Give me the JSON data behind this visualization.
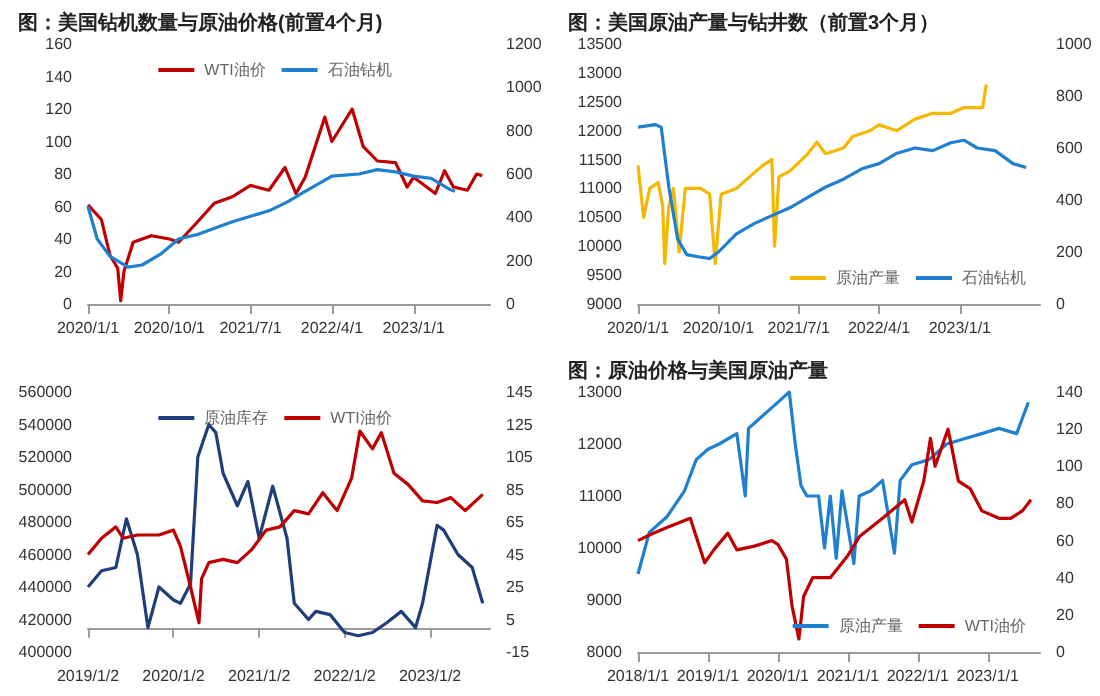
{
  "chart_data": [
    {
      "type": "line",
      "title": "图：美国钻机数量与原油价格(前置4个月)",
      "legend": "top",
      "marker": "none",
      "xlim": [
        "2020-01-01",
        "2023-09-15"
      ],
      "xticks": [
        {
          "value": "2020-01-01",
          "label": "2020/1/1"
        },
        {
          "value": "2020-10-01",
          "label": "2020/10/1"
        },
        {
          "value": "2021-07-01",
          "label": "2021/7/1"
        },
        {
          "value": "2022-04-01",
          "label": "2022/4/1"
        },
        {
          "value": "2023-01-01",
          "label": "2023/1/1"
        }
      ],
      "ylim": [
        0,
        160
      ],
      "yticks": [
        0,
        20,
        40,
        60,
        80,
        100,
        120,
        140,
        160
      ],
      "y2lim": [
        0,
        1200
      ],
      "y2ticks": [
        0,
        200,
        400,
        600,
        800,
        1000,
        1200
      ],
      "series": [
        {
          "name": "WTI油价",
          "color": "#c00000",
          "x": [
            "2020-01-01",
            "2020-02-15",
            "2020-03-15",
            "2020-04-10",
            "2020-04-20",
            "2020-05-01",
            "2020-06-01",
            "2020-08-01",
            "2020-10-01",
            "2020-11-01",
            "2021-01-01",
            "2021-03-01",
            "2021-05-01",
            "2021-07-01",
            "2021-09-01",
            "2021-10-25",
            "2021-12-01",
            "2022-01-01",
            "2022-03-08",
            "2022-04-01",
            "2022-06-08",
            "2022-07-15",
            "2022-09-01",
            "2022-11-01",
            "2022-12-10",
            "2023-01-01",
            "2023-03-15",
            "2023-04-15",
            "2023-05-15",
            "2023-07-01",
            "2023-08-01",
            "2023-08-20"
          ],
          "values": [
            61,
            52,
            30,
            22,
            2,
            20,
            38,
            42,
            40,
            38,
            50,
            62,
            66,
            73,
            70,
            84,
            68,
            78,
            115,
            100,
            120,
            97,
            88,
            87,
            72,
            78,
            68,
            82,
            72,
            70,
            80,
            79
          ]
        },
        {
          "name": "石油钻机",
          "color": "#1f7fd0",
          "axis": "y2",
          "x": [
            "2020-01-01",
            "2020-02-01",
            "2020-03-15",
            "2020-05-15",
            "2020-07-01",
            "2020-09-01",
            "2020-11-01",
            "2021-01-01",
            "2021-05-01",
            "2021-09-01",
            "2021-11-01",
            "2022-01-01",
            "2022-04-01",
            "2022-07-01",
            "2022-09-01",
            "2022-11-01",
            "2023-01-01",
            "2023-03-01",
            "2023-05-01",
            "2023-05-20"
          ],
          "values": [
            450,
            300,
            220,
            170,
            180,
            230,
            300,
            320,
            380,
            430,
            470,
            520,
            590,
            600,
            620,
            610,
            590,
            580,
            530,
            520
          ]
        }
      ]
    },
    {
      "type": "line",
      "title": "图：美国原油产量与钻井数（前置3个月）",
      "legend": "bottom",
      "marker": "none",
      "xlim": [
        "2020-01-01",
        "2023-10-01"
      ],
      "xticks": [
        {
          "value": "2020-01-01",
          "label": "2020/1/1"
        },
        {
          "value": "2020-10-01",
          "label": "2020/10/1"
        },
        {
          "value": "2021-07-01",
          "label": "2021/7/1"
        },
        {
          "value": "2022-04-01",
          "label": "2022/4/1"
        },
        {
          "value": "2023-01-01",
          "label": "2023/1/1"
        }
      ],
      "ylim": [
        9000,
        13500
      ],
      "yticks": [
        9000,
        9500,
        10000,
        10500,
        11000,
        11500,
        12000,
        12500,
        13000,
        13500
      ],
      "y2lim": [
        0,
        1000
      ],
      "y2ticks": [
        0,
        200,
        400,
        600,
        800,
        1000
      ],
      "series": [
        {
          "name": "原油产量",
          "color": "#f5b800",
          "x": [
            "2020-01-01",
            "2020-01-20",
            "2020-02-10",
            "2020-03-10",
            "2020-03-25",
            "2020-04-01",
            "2020-04-15",
            "2020-05-01",
            "2020-05-20",
            "2020-06-10",
            "2020-08-01",
            "2020-09-01",
            "2020-09-20",
            "2020-10-10",
            "2020-12-01",
            "2021-01-15",
            "2021-03-01",
            "2021-04-01",
            "2021-04-10",
            "2021-04-25",
            "2021-06-01",
            "2021-08-01",
            "2021-09-01",
            "2021-10-01",
            "2021-12-01",
            "2022-01-01",
            "2022-03-01",
            "2022-04-01",
            "2022-06-01",
            "2022-08-01",
            "2022-10-01",
            "2022-12-01",
            "2023-01-15",
            "2023-03-20",
            "2023-04-01"
          ],
          "values": [
            11400,
            10500,
            11000,
            11100,
            10700,
            9700,
            10700,
            11000,
            9900,
            11000,
            11000,
            10900,
            9700,
            10900,
            11000,
            11200,
            11400,
            11500,
            10000,
            11200,
            11300,
            11600,
            11800,
            11600,
            11700,
            11900,
            12000,
            12100,
            12000,
            12200,
            12300,
            12300,
            12400,
            12400,
            12800
          ]
        },
        {
          "name": "石油钻机",
          "color": "#1f7fd0",
          "axis": "y2",
          "x": [
            "2020-01-01",
            "2020-03-01",
            "2020-03-20",
            "2020-04-15",
            "2020-05-15",
            "2020-06-15",
            "2020-08-01",
            "2020-09-01",
            "2020-10-01",
            "2020-12-01",
            "2021-02-01",
            "2021-04-01",
            "2021-06-01",
            "2021-08-01",
            "2021-10-01",
            "2021-12-01",
            "2022-02-01",
            "2022-04-01",
            "2022-06-01",
            "2022-08-01",
            "2022-10-01",
            "2022-12-01",
            "2023-01-15",
            "2023-03-01",
            "2023-05-01",
            "2023-07-01",
            "2023-08-15"
          ],
          "values": [
            680,
            690,
            680,
            450,
            250,
            190,
            180,
            175,
            200,
            270,
            310,
            340,
            370,
            410,
            450,
            480,
            520,
            540,
            580,
            600,
            590,
            620,
            630,
            600,
            590,
            540,
            525
          ]
        }
      ]
    },
    {
      "type": "line",
      "legend": "top",
      "marker": "none",
      "xlim": [
        "2019-01-02",
        "2023-09-15"
      ],
      "xticks": [
        {
          "value": "2019-01-02",
          "label": "2019/1/2"
        },
        {
          "value": "2020-01-02",
          "label": "2020/1/2"
        },
        {
          "value": "2021-01-02",
          "label": "2021/1/2"
        },
        {
          "value": "2022-01-02",
          "label": "2022/1/2"
        },
        {
          "value": "2023-01-02",
          "label": "2023/1/2"
        }
      ],
      "ylim": [
        400000,
        560000
      ],
      "yticks": [
        400000,
        420000,
        440000,
        460000,
        480000,
        500000,
        520000,
        540000,
        560000
      ],
      "y2lim": [
        -15,
        145
      ],
      "y2ticks": [
        -15,
        5,
        25,
        45,
        65,
        85,
        105,
        125,
        145
      ],
      "series": [
        {
          "name": "原油库存",
          "color": "#203f7a",
          "x": [
            "2019-01-02",
            "2019-03-01",
            "2019-05-01",
            "2019-06-15",
            "2019-08-01",
            "2019-09-15",
            "2019-11-01",
            "2020-01-02",
            "2020-02-01",
            "2020-03-15",
            "2020-04-15",
            "2020-06-01",
            "2020-07-01",
            "2020-08-01",
            "2020-10-01",
            "2020-11-15",
            "2021-01-02",
            "2021-03-01",
            "2021-05-01",
            "2021-06-01",
            "2021-08-01",
            "2021-09-01",
            "2021-11-01",
            "2022-01-02",
            "2022-03-01",
            "2022-05-01",
            "2022-07-01",
            "2022-09-01",
            "2022-11-01",
            "2022-12-01",
            "2023-02-01",
            "2023-03-01",
            "2023-05-01",
            "2023-07-01",
            "2023-08-15"
          ],
          "values": [
            440000,
            450000,
            452000,
            482000,
            460000,
            415000,
            440000,
            432000,
            430000,
            442000,
            520000,
            540000,
            535000,
            510000,
            490000,
            505000,
            470000,
            502000,
            470000,
            430000,
            420000,
            425000,
            423000,
            412000,
            410000,
            412000,
            418000,
            425000,
            415000,
            430000,
            478000,
            475000,
            460000,
            452000,
            430000
          ]
        },
        {
          "name": "WTI油价",
          "color": "#c00000",
          "axis": "y2",
          "x": [
            "2019-01-02",
            "2019-03-01",
            "2019-05-01",
            "2019-06-01",
            "2019-08-01",
            "2019-11-01",
            "2020-01-02",
            "2020-02-01",
            "2020-03-15",
            "2020-04-20",
            "2020-05-01",
            "2020-06-01",
            "2020-08-01",
            "2020-10-01",
            "2020-12-01",
            "2021-02-01",
            "2021-04-01",
            "2021-06-01",
            "2021-08-01",
            "2021-10-01",
            "2021-12-01",
            "2022-02-01",
            "2022-03-08",
            "2022-05-01",
            "2022-06-08",
            "2022-08-01",
            "2022-10-01",
            "2022-12-01",
            "2023-02-01",
            "2023-04-01",
            "2023-06-01",
            "2023-08-15"
          ],
          "values": [
            45,
            55,
            62,
            55,
            57,
            57,
            60,
            50,
            25,
            3,
            30,
            40,
            42,
            40,
            48,
            60,
            62,
            72,
            70,
            83,
            72,
            92,
            121,
            110,
            120,
            95,
            88,
            78,
            77,
            80,
            72,
            82
          ]
        }
      ]
    },
    {
      "type": "line",
      "title": "图：原油价格与美国原油产量",
      "legend": "bottom",
      "marker": "none",
      "xlim": [
        "2018-01-01",
        "2023-10-01"
      ],
      "xticks": [
        {
          "value": "2018-01-01",
          "label": "2018/1/1"
        },
        {
          "value": "2019-01-01",
          "label": "2019/1/1"
        },
        {
          "value": "2020-01-01",
          "label": "2020/1/1"
        },
        {
          "value": "2021-01-01",
          "label": "2021/1/1"
        },
        {
          "value": "2022-01-01",
          "label": "2022/1/1"
        },
        {
          "value": "2023-01-01",
          "label": "2023/1/1"
        }
      ],
      "ylim": [
        8000,
        13000
      ],
      "yticks": [
        8000,
        9000,
        10000,
        11000,
        12000,
        13000
      ],
      "y2lim": [
        0,
        140
      ],
      "y2ticks": [
        0,
        20,
        40,
        60,
        80,
        100,
        120,
        140
      ],
      "series": [
        {
          "name": "原油产量",
          "color": "#1f7fd0",
          "x": [
            "2018-01-01",
            "2018-03-01",
            "2018-06-01",
            "2018-09-01",
            "2018-11-01",
            "2019-01-01",
            "2019-03-01",
            "2019-06-01",
            "2019-07-15",
            "2019-08-01",
            "2019-10-01",
            "2020-01-01",
            "2020-03-01",
            "2020-04-01",
            "2020-05-01",
            "2020-06-01",
            "2020-08-01",
            "2020-09-01",
            "2020-10-01",
            "2020-11-01",
            "2020-12-01",
            "2021-02-01",
            "2021-03-01",
            "2021-05-01",
            "2021-07-01",
            "2021-09-01",
            "2021-10-01",
            "2021-12-01",
            "2022-03-01",
            "2022-06-01",
            "2022-09-01",
            "2022-12-01",
            "2023-03-01",
            "2023-06-01",
            "2023-08-01"
          ],
          "values": [
            9500,
            10300,
            10600,
            11100,
            11700,
            11900,
            12000,
            12200,
            11000,
            12300,
            12500,
            12800,
            13000,
            12000,
            11200,
            11000,
            11000,
            10000,
            11000,
            9800,
            11100,
            9700,
            11000,
            11100,
            11300,
            9900,
            11300,
            11600,
            11700,
            12000,
            12100,
            12200,
            12300,
            12200,
            12800
          ]
        },
        {
          "name": "WTI油价",
          "color": "#c00000",
          "axis": "y2",
          "x": [
            "2018-01-01",
            "2018-03-01",
            "2018-06-01",
            "2018-10-01",
            "2018-12-15",
            "2019-02-01",
            "2019-04-15",
            "2019-06-01",
            "2019-09-01",
            "2019-12-01",
            "2020-01-01",
            "2020-02-15",
            "2020-03-15",
            "2020-04-20",
            "2020-05-15",
            "2020-07-01",
            "2020-10-01",
            "2021-01-01",
            "2021-03-01",
            "2021-07-01",
            "2021-10-25",
            "2021-12-01",
            "2022-02-01",
            "2022-03-08",
            "2022-04-01",
            "2022-06-08",
            "2022-08-01",
            "2022-10-01",
            "2022-12-01",
            "2023-03-01",
            "2023-05-01",
            "2023-07-01",
            "2023-08-15"
          ],
          "values": [
            60,
            63,
            67,
            72,
            48,
            55,
            64,
            55,
            57,
            60,
            58,
            50,
            25,
            7,
            30,
            40,
            40,
            52,
            62,
            72,
            82,
            70,
            92,
            115,
            100,
            120,
            92,
            88,
            76,
            72,
            72,
            76,
            82
          ]
        }
      ]
    }
  ]
}
